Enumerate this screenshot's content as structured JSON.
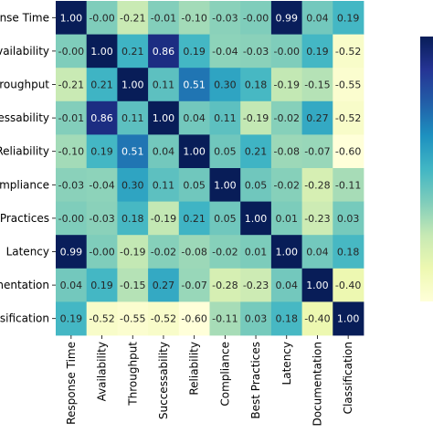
{
  "chart_data": {
    "type": "heatmap",
    "title": "",
    "xlabel": "",
    "ylabel": "",
    "row_labels": [
      "onse Time",
      "vailability",
      "hroughput",
      "essability",
      "Reliability",
      "mpliance",
      "Practices",
      "Latency",
      "nentation",
      "ssification"
    ],
    "col_labels": [
      "Response Time",
      "Availability",
      "Throughput",
      "Successability",
      "Reliability",
      "Compliance",
      "Best Practices",
      "Latency",
      "Documentation",
      "Classification"
    ],
    "values": [
      [
        1.0,
        -0.0,
        -0.21,
        -0.01,
        -0.1,
        -0.03,
        -0.0,
        0.99,
        0.04,
        0.19
      ],
      [
        -0.0,
        1.0,
        0.21,
        0.86,
        0.19,
        -0.04,
        -0.03,
        -0.0,
        0.19,
        -0.52
      ],
      [
        -0.21,
        0.21,
        1.0,
        0.11,
        0.51,
        0.3,
        0.18,
        -0.19,
        -0.15,
        -0.55
      ],
      [
        -0.01,
        0.86,
        0.11,
        1.0,
        0.04,
        0.11,
        -0.19,
        -0.02,
        0.27,
        -0.52
      ],
      [
        -0.1,
        0.19,
        0.51,
        0.04,
        1.0,
        0.05,
        0.21,
        -0.08,
        -0.07,
        -0.6
      ],
      [
        -0.03,
        -0.04,
        0.3,
        0.11,
        0.05,
        1.0,
        0.05,
        -0.02,
        -0.28,
        -0.11
      ],
      [
        -0.0,
        -0.03,
        0.18,
        -0.19,
        0.21,
        0.05,
        1.0,
        0.01,
        -0.23,
        0.03
      ],
      [
        0.99,
        -0.0,
        -0.19,
        -0.02,
        -0.08,
        -0.02,
        0.01,
        1.0,
        0.04,
        0.18
      ],
      [
        0.04,
        0.19,
        -0.15,
        0.27,
        -0.07,
        -0.28,
        -0.23,
        0.04,
        1.0,
        -0.4
      ],
      [
        0.19,
        -0.52,
        -0.55,
        -0.52,
        -0.6,
        -0.11,
        0.03,
        0.18,
        -0.4,
        1.0
      ]
    ],
    "value_labels": [
      [
        "1.00",
        "-0.00",
        "-0.21",
        "-0.01",
        "-0.10",
        "-0.03",
        "-0.00",
        "0.99",
        "0.04",
        "0.19"
      ],
      [
        "-0.00",
        "1.00",
        "0.21",
        "0.86",
        "0.19",
        "-0.04",
        "-0.03",
        "-0.00",
        "0.19",
        "-0.52"
      ],
      [
        "-0.21",
        "0.21",
        "1.00",
        "0.11",
        "0.51",
        "0.30",
        "0.18",
        "-0.19",
        "-0.15",
        "-0.55"
      ],
      [
        "-0.01",
        "0.86",
        "0.11",
        "1.00",
        "0.04",
        "0.11",
        "-0.19",
        "-0.02",
        "0.27",
        "-0.52"
      ],
      [
        "-0.10",
        "0.19",
        "0.51",
        "0.04",
        "1.00",
        "0.05",
        "0.21",
        "-0.08",
        "-0.07",
        "-0.60"
      ],
      [
        "-0.03",
        "-0.04",
        "0.30",
        "0.11",
        "0.05",
        "1.00",
        "0.05",
        "-0.02",
        "-0.28",
        "-0.11"
      ],
      [
        "-0.00",
        "-0.03",
        "0.18",
        "-0.19",
        "0.21",
        "0.05",
        "1.00",
        "0.01",
        "-0.23",
        "0.03"
      ],
      [
        "0.99",
        "-0.00",
        "-0.19",
        "-0.02",
        "-0.08",
        "-0.02",
        "0.01",
        "1.00",
        "0.04",
        "0.18"
      ],
      [
        "0.04",
        "0.19",
        "-0.15",
        "0.27",
        "-0.07",
        "-0.28",
        "-0.23",
        "0.04",
        "1.00",
        "-0.40"
      ],
      [
        "0.19",
        "-0.52",
        "-0.55",
        "-0.52",
        "-0.60",
        "-0.11",
        "0.03",
        "0.18",
        "-0.40",
        "1.00"
      ]
    ],
    "vmin": -0.6,
    "vmax": 1.0,
    "colormap": "YlGnBu",
    "colormap_stops": [
      "#ffffd9",
      "#edf8b1",
      "#c7e9b4",
      "#7fcdbb",
      "#41b6c4",
      "#1d91c0",
      "#225ea8",
      "#253494",
      "#081d58"
    ],
    "annotation_text_light": "#ffffff",
    "annotation_text_dark": "#262626",
    "grid": false,
    "colorbar": "right"
  }
}
